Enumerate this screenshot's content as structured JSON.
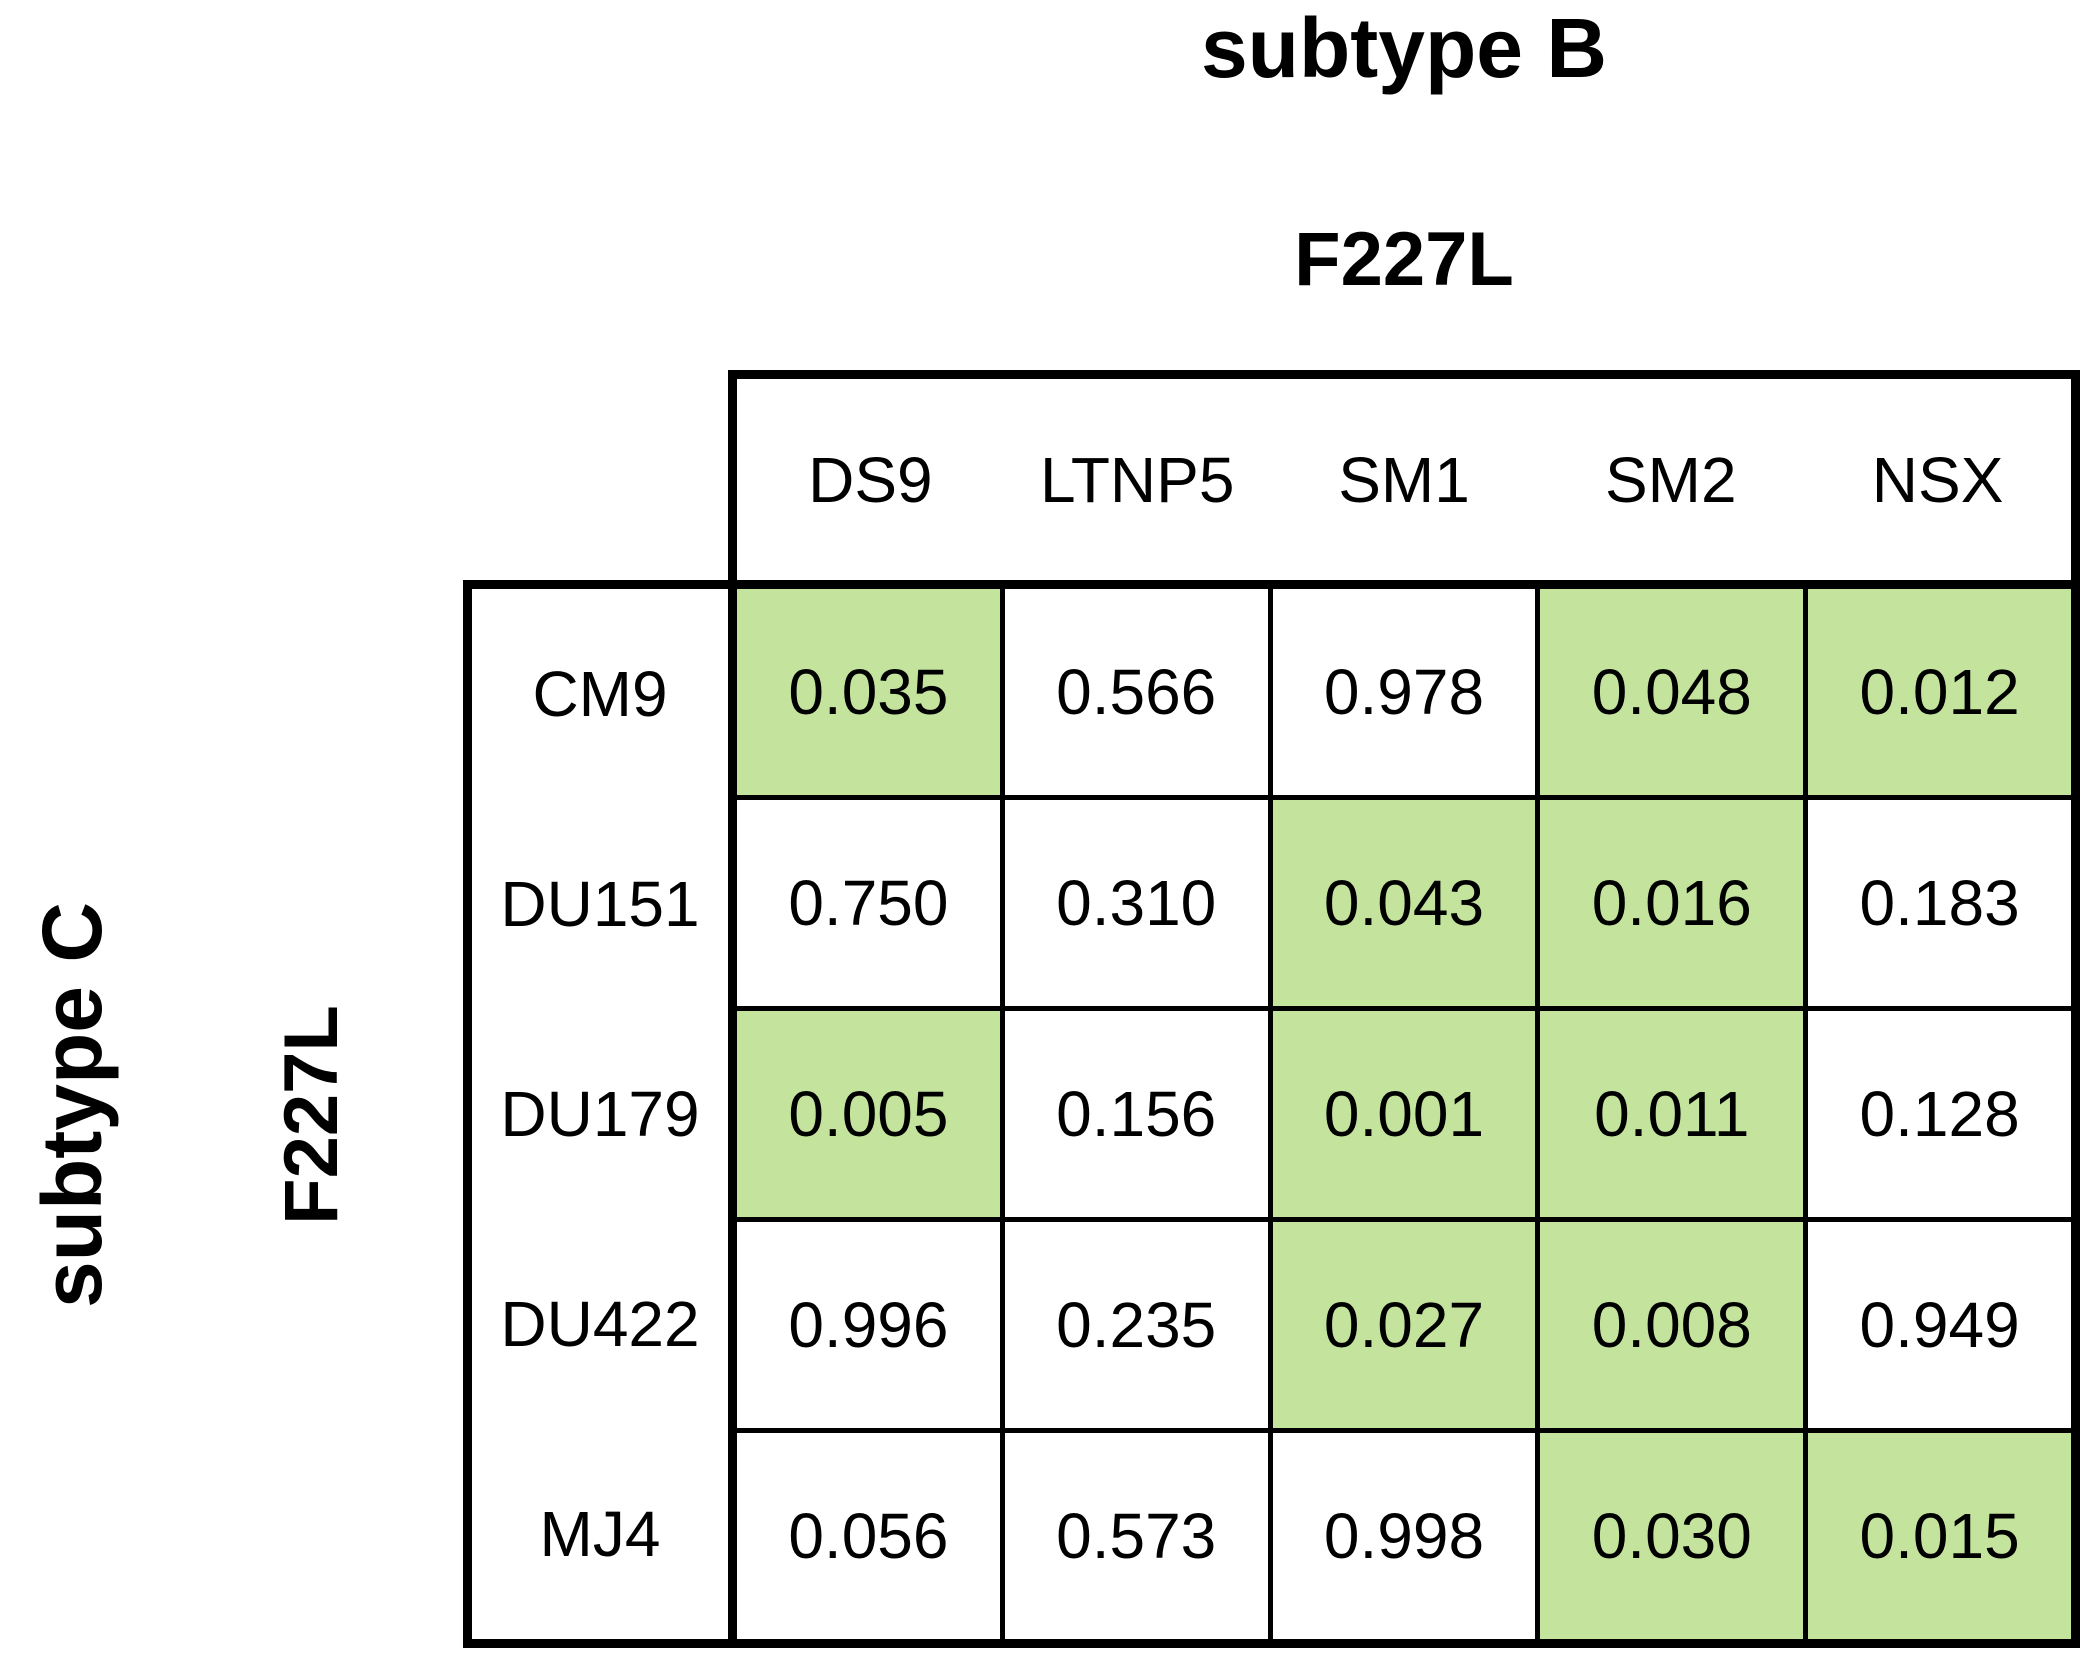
{
  "figure": {
    "top_subtype_label": "subtype B",
    "top_mutation_label": "F227L",
    "left_subtype_label": "subtype C",
    "left_mutation_label": "F227L"
  },
  "colors": {
    "highlight_green": "#c4e49e",
    "border": "#000000",
    "background": "#ffffff",
    "text": "#000000"
  },
  "chart_data": {
    "type": "table",
    "title": "subtype B",
    "column_group_label": "subtype B",
    "column_axis_label": "F227L",
    "row_group_label": "subtype C",
    "row_axis_label": "F227L",
    "columns": [
      "DS9",
      "LTNP5",
      "SM1",
      "SM2",
      "NSX"
    ],
    "rows": [
      "CM9",
      "DU151",
      "DU179",
      "DU422",
      "MJ4"
    ],
    "values": [
      [
        0.035,
        0.566,
        0.978,
        0.048,
        0.012
      ],
      [
        0.75,
        0.31,
        0.043,
        0.016,
        0.183
      ],
      [
        0.005,
        0.156,
        0.001,
        0.011,
        0.128
      ],
      [
        0.996,
        0.235,
        0.027,
        0.008,
        0.949
      ],
      [
        0.056,
        0.573,
        0.998,
        0.03,
        0.015
      ]
    ],
    "value_labels": [
      [
        "0.035",
        "0.566",
        "0.978",
        "0.048",
        "0.012"
      ],
      [
        "0.750",
        "0.310",
        "0.043",
        "0.016",
        "0.183"
      ],
      [
        "0.005",
        "0.156",
        "0.001",
        "0.011",
        "0.128"
      ],
      [
        "0.996",
        "0.235",
        "0.027",
        "0.008",
        "0.949"
      ],
      [
        "0.056",
        "0.573",
        "0.998",
        "0.030",
        "0.015"
      ]
    ],
    "highlighted_cells": [
      [
        true,
        false,
        false,
        true,
        true
      ],
      [
        false,
        false,
        true,
        true,
        false
      ],
      [
        true,
        false,
        true,
        true,
        false
      ],
      [
        false,
        false,
        true,
        true,
        false
      ],
      [
        false,
        false,
        false,
        true,
        true
      ]
    ],
    "highlight_color": "#c4e49e",
    "grid_on": true,
    "legend_position": "none"
  }
}
